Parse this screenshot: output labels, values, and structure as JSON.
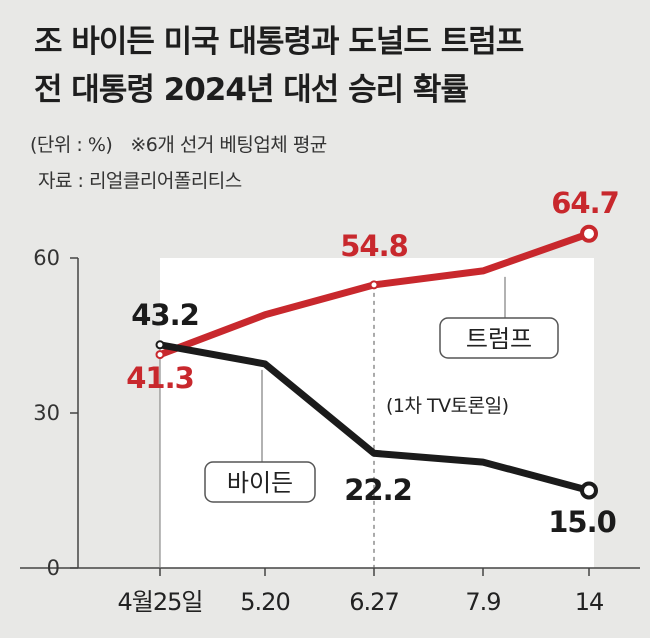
{
  "title": {
    "line1": "조 바이든 미국 대통령과 도널드 트럼프",
    "line2": "전 대통령 2024년 대선 승리 확률"
  },
  "notes": {
    "unit": "(단위 : %)",
    "method": "※6개 선거 베팅업체 평균",
    "source": "자료 : 리얼클리어폴리티스"
  },
  "chart_data": {
    "type": "line",
    "categories": [
      "4월25일",
      "5.20",
      "6.27",
      "7.9",
      "14"
    ],
    "ylim": [
      0,
      60
    ],
    "yticks": [
      "0",
      "30",
      "60"
    ],
    "grid": false,
    "series": [
      {
        "name": "트럼프",
        "color": "#c8282d",
        "values": [
          41.3,
          49.0,
          54.8,
          57.5,
          64.7
        ],
        "labels": [
          "41.3",
          "",
          "54.8",
          "",
          "64.7"
        ]
      },
      {
        "name": "바이든",
        "color": "#1b1b1b",
        "values": [
          43.2,
          39.5,
          22.2,
          20.5,
          15.0
        ],
        "labels": [
          "43.2",
          "",
          "22.2",
          "",
          "15.0"
        ]
      }
    ],
    "annotation": "(1차 TV토론일)"
  }
}
